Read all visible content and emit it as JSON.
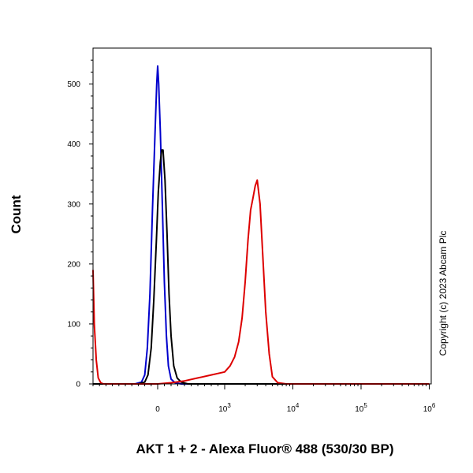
{
  "chart_data": {
    "type": "line",
    "title": "",
    "xlabel": "AKT 1 + 2 - Alexa Fluor® 488 (530/30 BP)",
    "ylabel": "Count",
    "x_scale": "biexponential",
    "xlim": [
      -1000,
      1000000
    ],
    "ylim": [
      0,
      560
    ],
    "y_ticks": [
      0,
      100,
      200,
      300,
      400,
      500
    ],
    "x_ticks": [
      {
        "value": 0,
        "base": "0",
        "exp": ""
      },
      {
        "value": 1000,
        "base": "10",
        "exp": "3"
      },
      {
        "value": 10000,
        "base": "10",
        "exp": "4"
      },
      {
        "value": 100000,
        "base": "10",
        "exp": "5"
      },
      {
        "value": 1000000,
        "base": "10",
        "exp": "6"
      }
    ],
    "grid": false,
    "legend": "none",
    "series": [
      {
        "color": "#0000cc",
        "x": [
          -1000,
          -350,
          -250,
          -200,
          -160,
          -120,
          -80,
          -40,
          -15,
          0,
          15,
          40,
          70,
          100,
          130,
          160,
          200,
          260,
          350,
          1000000
        ],
        "y": [
          0,
          0,
          3,
          15,
          60,
          150,
          290,
          420,
          500,
          530,
          500,
          420,
          300,
          170,
          80,
          30,
          8,
          2,
          0,
          0
        ]
      },
      {
        "color": "#000000",
        "x": [
          -1000,
          -300,
          -200,
          -150,
          -100,
          -60,
          -20,
          10,
          40,
          60,
          80,
          110,
          140,
          170,
          200,
          240,
          290,
          350,
          450,
          1000000
        ],
        "y": [
          0,
          0,
          3,
          15,
          60,
          140,
          240,
          320,
          370,
          390,
          390,
          340,
          250,
          150,
          80,
          30,
          10,
          3,
          0,
          0
        ]
      },
      {
        "color": "#dd0000",
        "x": [
          -1000,
          -980,
          -950,
          -920,
          -880,
          -840,
          -700,
          -400,
          0,
          200,
          400,
          600,
          800,
          1000,
          1200,
          1400,
          1600,
          1800,
          2000,
          2200,
          2400,
          2600,
          2800,
          3000,
          3300,
          3600,
          4000,
          4500,
          5000,
          6000,
          8000,
          20000,
          1000000
        ],
        "y": [
          190,
          100,
          40,
          10,
          2,
          0,
          0,
          0,
          0,
          2,
          5,
          10,
          15,
          20,
          30,
          45,
          70,
          110,
          170,
          240,
          290,
          310,
          330,
          340,
          300,
          220,
          120,
          50,
          12,
          2,
          0,
          0,
          0
        ]
      }
    ]
  },
  "copyright": "Copyright (c) 2023 Abcam Plc"
}
